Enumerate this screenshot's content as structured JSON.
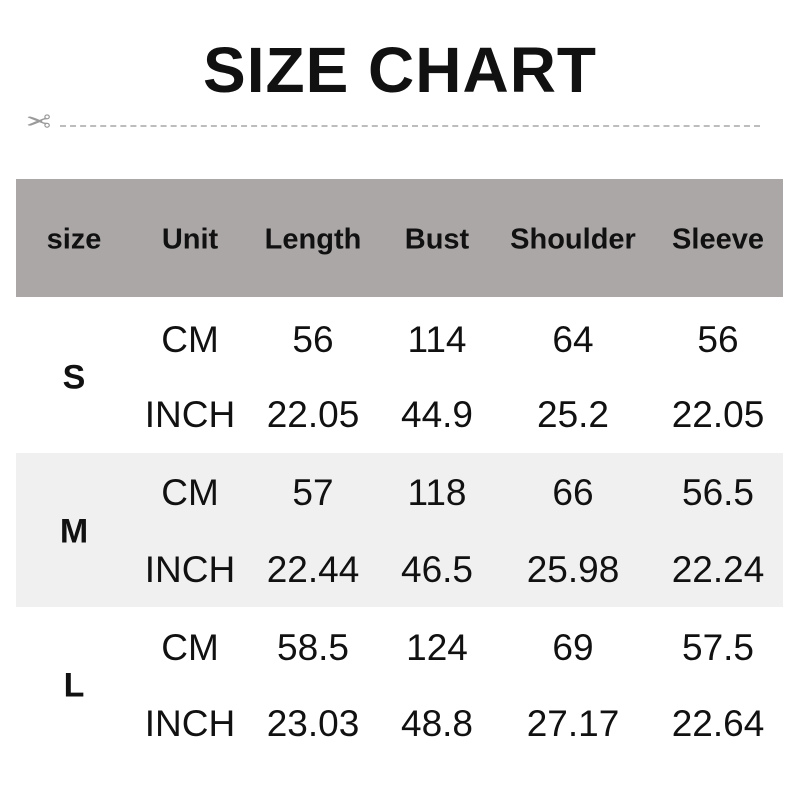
{
  "title": "SIZE CHART",
  "icons": {
    "cut": "scissors-icon"
  },
  "colors": {
    "header_bg": "#aba7a7",
    "stripe_bg": "#f0f0f0"
  },
  "headers": [
    "size",
    "Unit",
    "Length",
    "Bust",
    "Shoulder",
    "Sleeve"
  ],
  "rows": [
    {
      "size": "S",
      "cm": {
        "unit": "CM",
        "values": [
          "56",
          "114",
          "64",
          "56"
        ]
      },
      "inch": {
        "unit": "INCH",
        "values": [
          "22.05",
          "44.9",
          "25.2",
          "22.05"
        ]
      }
    },
    {
      "size": "M",
      "cm": {
        "unit": "CM",
        "values": [
          "57",
          "118",
          "66",
          "56.5"
        ]
      },
      "inch": {
        "unit": "INCH",
        "values": [
          "22.44",
          "46.5",
          "25.98",
          "22.24"
        ]
      }
    },
    {
      "size": "L",
      "cm": {
        "unit": "CM",
        "values": [
          "58.5",
          "124",
          "69",
          "57.5"
        ]
      },
      "inch": {
        "unit": "INCH",
        "values": [
          "23.03",
          "48.8",
          "27.17",
          "22.64"
        ]
      }
    }
  ]
}
